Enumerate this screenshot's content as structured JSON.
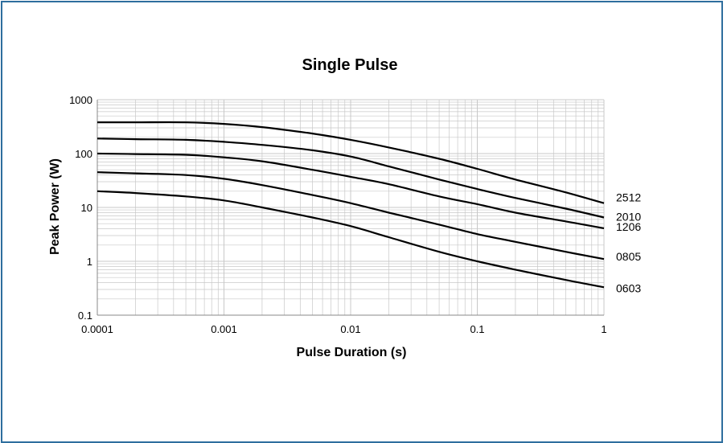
{
  "chart_data": {
    "type": "line",
    "title": "Single Pulse",
    "xlabel": "Pulse Duration (s)",
    "ylabel": "Peak Power (W)",
    "x_scale": "log",
    "y_scale": "log",
    "xlim": [
      0.0001,
      1
    ],
    "ylim": [
      0.1,
      1000
    ],
    "x_ticks": [
      "0.0001",
      "0.001",
      "0.01",
      "0.1",
      "1"
    ],
    "y_ticks": [
      "1000",
      "100",
      "10",
      "1",
      "0.1"
    ],
    "grid": true,
    "colors": {
      "line": "#000000",
      "grid": "#c8c8c8",
      "frame": "#2e6e9e"
    },
    "series": [
      {
        "name": "2512",
        "x": [
          0.0001,
          0.0002,
          0.0005,
          0.001,
          0.002,
          0.005,
          0.01,
          0.02,
          0.05,
          0.1,
          0.2,
          0.5,
          1
        ],
        "y": [
          380,
          380,
          380,
          355,
          310,
          235,
          180,
          130,
          80,
          52,
          33,
          19,
          12
        ]
      },
      {
        "name": "2010",
        "x": [
          0.0001,
          0.0002,
          0.0005,
          0.001,
          0.002,
          0.005,
          0.01,
          0.02,
          0.05,
          0.1,
          0.2,
          0.5,
          1
        ],
        "y": [
          190,
          185,
          180,
          165,
          145,
          115,
          88,
          58,
          33,
          22,
          15,
          9.5,
          6.5
        ]
      },
      {
        "name": "1206",
        "x": [
          0.0001,
          0.0002,
          0.0005,
          0.001,
          0.002,
          0.005,
          0.01,
          0.02,
          0.05,
          0.1,
          0.2,
          0.5,
          1
        ],
        "y": [
          100,
          98,
          95,
          85,
          72,
          50,
          37,
          27,
          16,
          11.5,
          8,
          5.5,
          4.1
        ]
      },
      {
        "name": "0805",
        "x": [
          0.0001,
          0.0002,
          0.0005,
          0.001,
          0.002,
          0.005,
          0.01,
          0.02,
          0.05,
          0.1,
          0.2,
          0.5,
          1
        ],
        "y": [
          45,
          43,
          40,
          34,
          26,
          17,
          12,
          8,
          4.8,
          3.2,
          2.3,
          1.5,
          1.1
        ]
      },
      {
        "name": "0603",
        "x": [
          0.0001,
          0.0002,
          0.0005,
          0.001,
          0.002,
          0.005,
          0.01,
          0.02,
          0.05,
          0.1,
          0.2,
          0.5,
          1
        ],
        "y": [
          20,
          18.5,
          16,
          13.5,
          10,
          6.5,
          4.5,
          2.8,
          1.5,
          1.0,
          0.7,
          0.45,
          0.33
        ]
      }
    ]
  }
}
